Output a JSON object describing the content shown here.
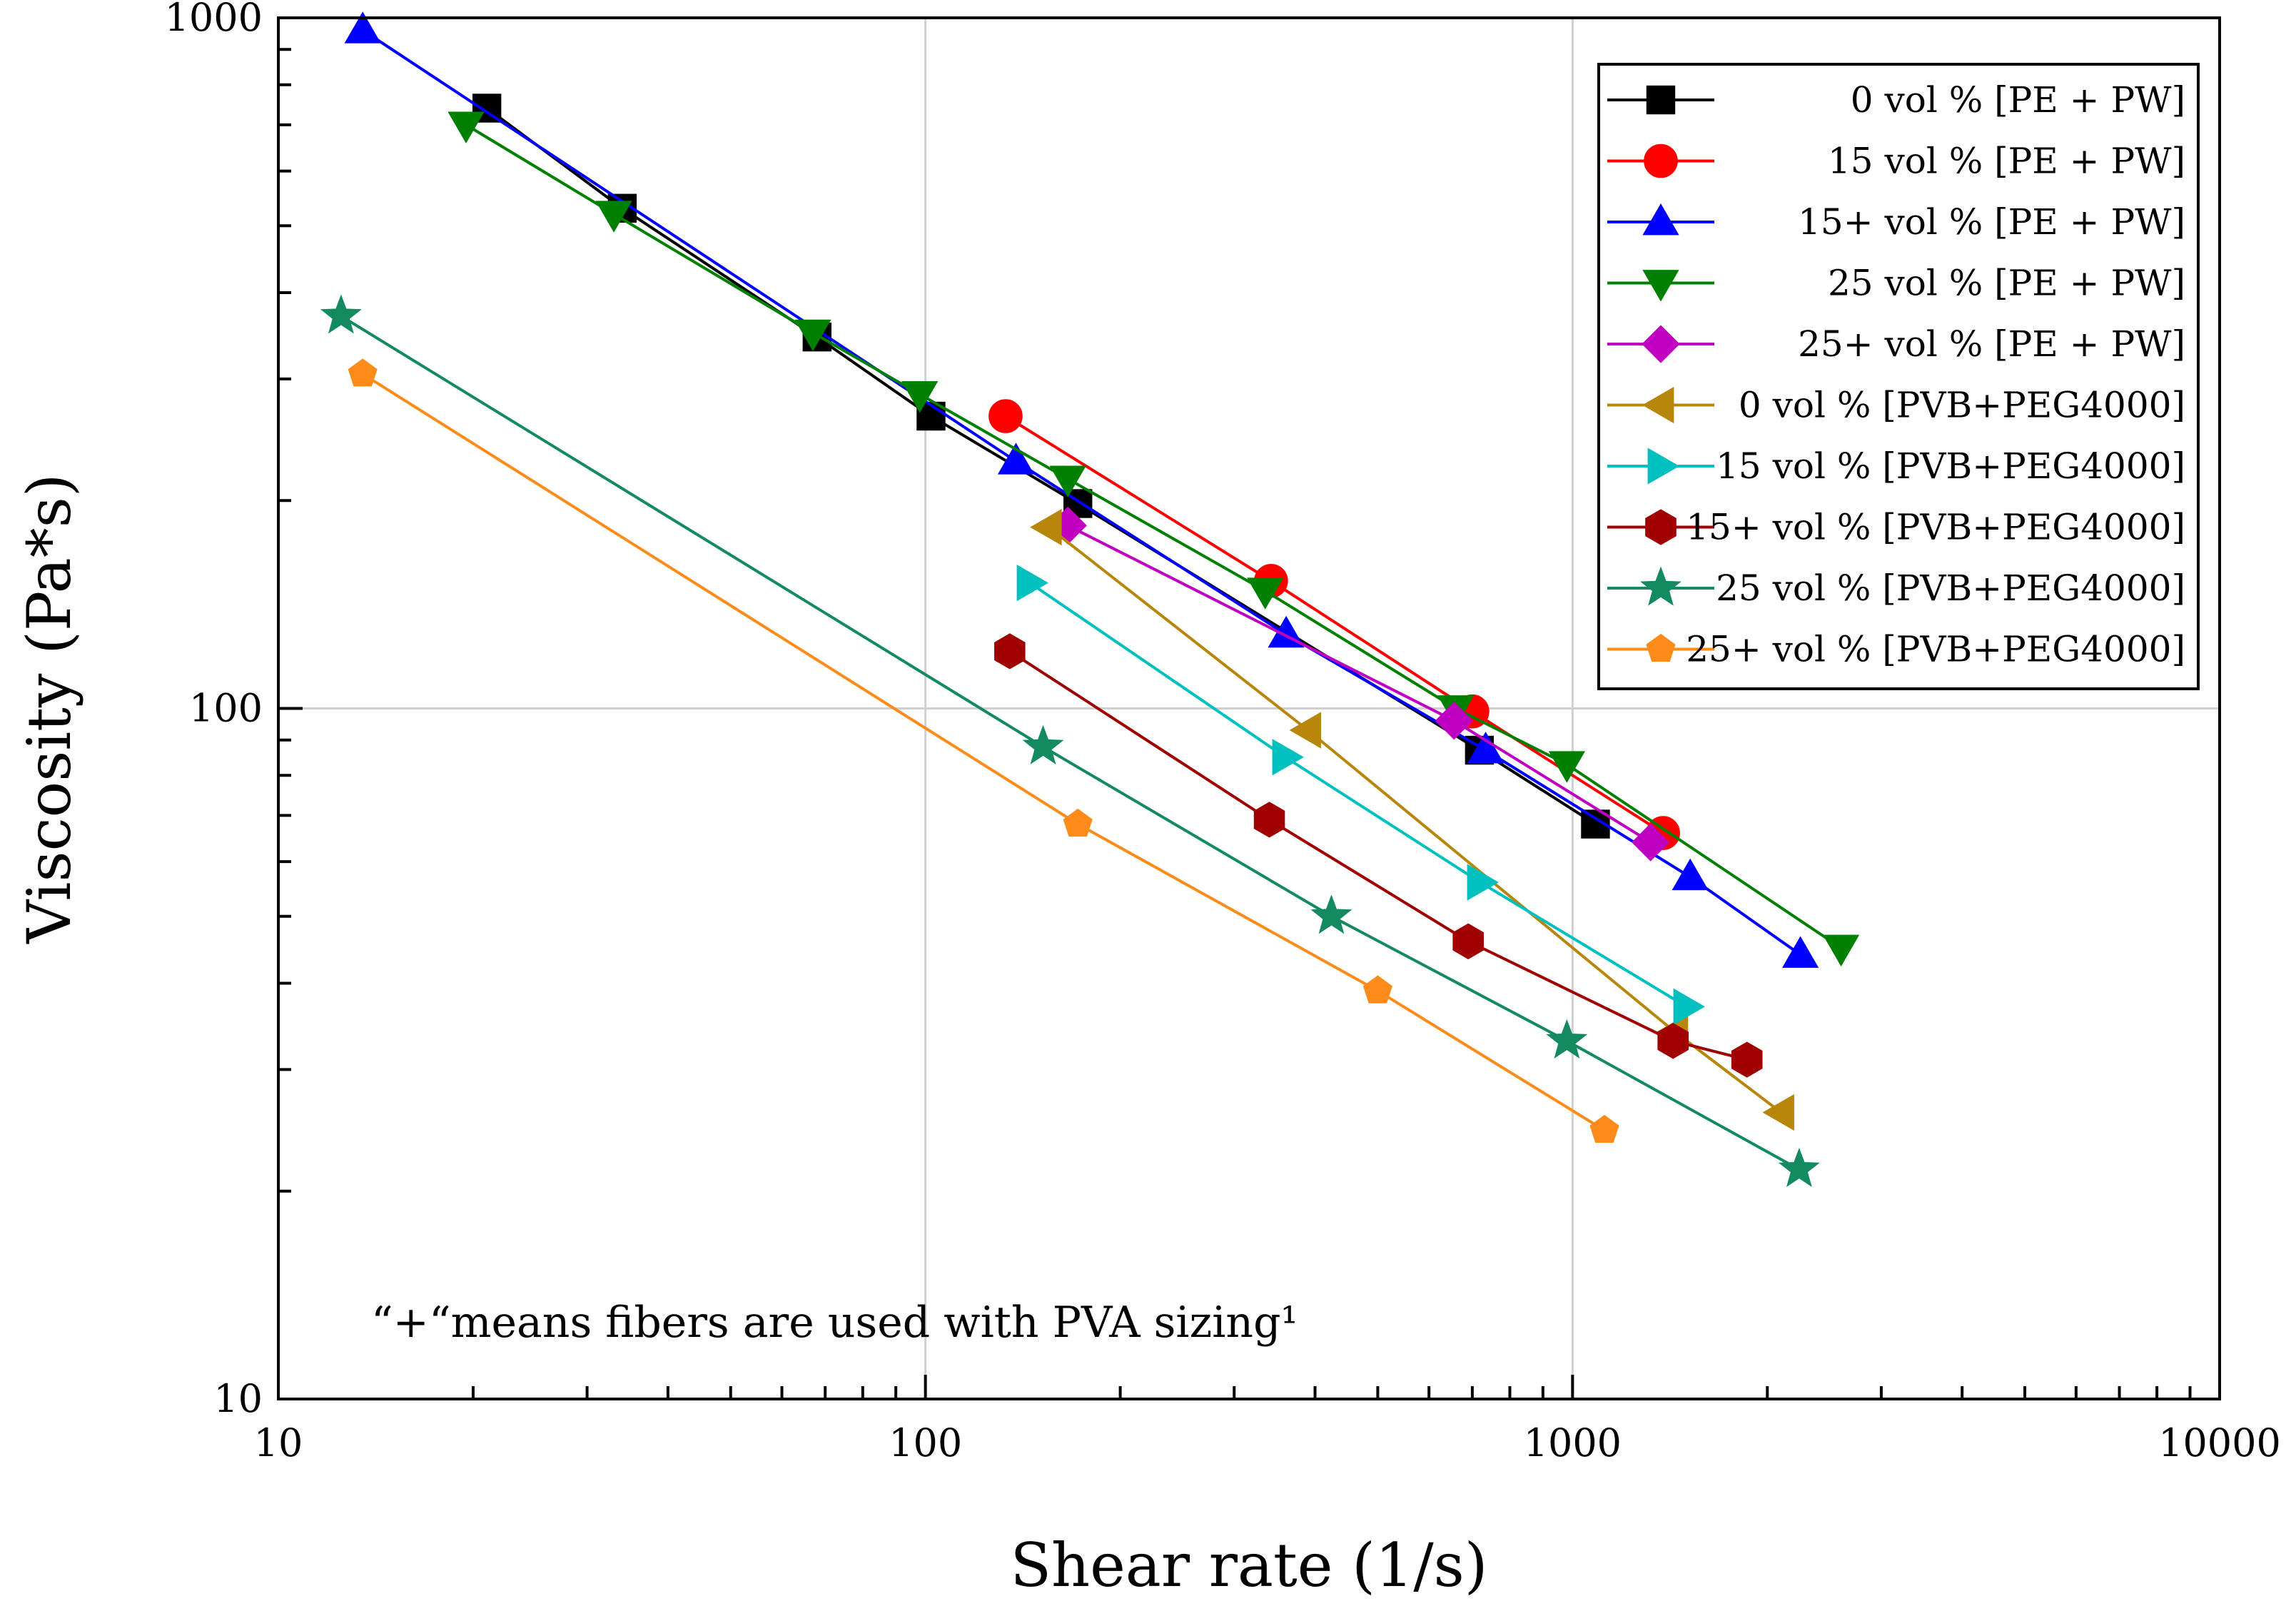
{
  "chart_data": {
    "type": "line",
    "xlabel": "Shear rate (1/s)",
    "ylabel": "Viscosity (Pa*s)",
    "xscale": "log",
    "yscale": "log",
    "xlim": [
      10,
      10000
    ],
    "ylim": [
      10,
      1000
    ],
    "xticks": [
      "10",
      "100",
      "1000",
      "10000"
    ],
    "yticks": [
      "10",
      "100",
      "1000"
    ],
    "grid": true,
    "legend_position": "top-right",
    "note": "“+“means fibers are used with PVA sizing¹",
    "series": [
      {
        "name": "0 vol % [PE + PW]",
        "color": "#000000",
        "marker": "square",
        "x": [
          21,
          34,
          68,
          102,
          172,
          718,
          1085
        ],
        "y": [
          740,
          530,
          345,
          265,
          198,
          87,
          68
        ]
      },
      {
        "name": "15 vol % [PE + PW]",
        "color": "#ff0000",
        "marker": "circle",
        "x": [
          133,
          342,
          700,
          1380
        ],
        "y": [
          265,
          153,
          99,
          66
        ]
      },
      {
        "name": "15+ vol % [PE + PW]",
        "color": "#0000ff",
        "marker": "triangle-up",
        "x": [
          13.5,
          138,
          361,
          734,
          1520,
          2250
        ],
        "y": [
          960,
          228,
          128,
          87,
          57,
          44
        ]
      },
      {
        "name": "25 vol % [PE + PW]",
        "color": "#008000",
        "marker": "triangle-down",
        "x": [
          19.5,
          33,
          67,
          98,
          166,
          335,
          660,
          980,
          2600
        ],
        "y": [
          700,
          520,
          350,
          285,
          215,
          148,
          100,
          83,
          45
        ]
      },
      {
        "name": "25+ vol % [PE + PW]",
        "color": "#c000c0",
        "marker": "diamond",
        "x": [
          166,
          656,
          1320
        ],
        "y": [
          184,
          96,
          64
        ]
      },
      {
        "name": "0 vol % [PVB+PEG4000]",
        "color": "#b8860b",
        "marker": "triangle-left",
        "x": [
          155,
          390,
          1440,
          2100
        ],
        "y": [
          183,
          93,
          34,
          26
        ]
      },
      {
        "name": "15 vol % [PVB+PEG4000]",
        "color": "#00c0c0",
        "marker": "triangle-right",
        "x": [
          145,
          360,
          720,
          1500
        ],
        "y": [
          152,
          85,
          56,
          37
        ]
      },
      {
        "name": "15+ vol % [PVB+PEG4000]",
        "color": "#a00000",
        "marker": "hexagon",
        "x": [
          135,
          340,
          690,
          1430,
          1860
        ],
        "y": [
          121,
          69,
          46,
          33,
          31
        ]
      },
      {
        "name": "25 vol % [PVB+PEG4000]",
        "color": "#138a60",
        "marker": "star",
        "x": [
          12.5,
          152,
          424,
          980,
          2240
        ],
        "y": [
          370,
          88,
          50,
          33,
          21.5
        ]
      },
      {
        "name": "25+ vol % [PVB+PEG4000]",
        "color": "#ff8c1a",
        "marker": "pentagon",
        "x": [
          13.5,
          172,
          500,
          1120
        ],
        "y": [
          305,
          68,
          39,
          24.5
        ]
      }
    ]
  }
}
